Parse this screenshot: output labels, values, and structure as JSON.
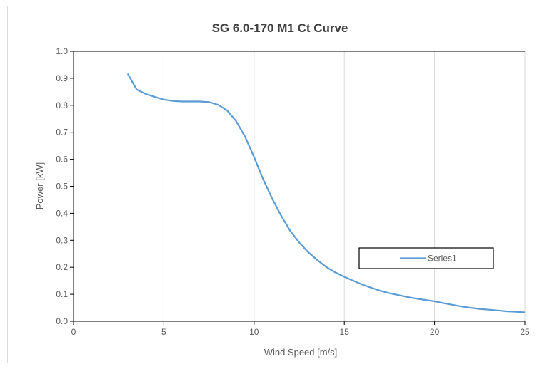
{
  "chart_data": {
    "type": "line",
    "title": "SG 6.0-170 M1 Ct Curve",
    "xlabel": "Wind Speed [m/s]",
    "ylabel": "Power [kW]",
    "xlim": [
      0,
      25
    ],
    "ylim": [
      0,
      1.0
    ],
    "xticks": [
      0,
      5,
      10,
      15,
      20,
      25
    ],
    "yticks": [
      "0.0",
      "0.1",
      "0.2",
      "0.3",
      "0.4",
      "0.5",
      "0.6",
      "0.7",
      "0.8",
      "0.9",
      "1.0"
    ],
    "grid": "vertical",
    "legend": {
      "placement": "lower-right",
      "entries": [
        "Series1"
      ]
    },
    "colors": {
      "series": "#5b9bd5",
      "grid": "#d9d9d9",
      "axis": "#000000"
    },
    "series": [
      {
        "name": "Series1",
        "x": [
          3,
          3.5,
          4,
          4.5,
          5,
          5.5,
          6,
          6.5,
          7,
          7.5,
          8,
          8.5,
          9,
          9.5,
          10,
          10.5,
          11,
          11.5,
          12,
          12.5,
          13,
          13.5,
          14,
          14.5,
          15,
          15.5,
          16,
          16.5,
          17,
          17.5,
          18,
          18.5,
          19,
          19.5,
          20,
          20.5,
          21,
          21.5,
          22,
          22.5,
          23,
          23.5,
          24,
          24.5,
          25
        ],
        "y": [
          0.917,
          0.858,
          0.842,
          0.831,
          0.821,
          0.816,
          0.814,
          0.814,
          0.814,
          0.812,
          0.802,
          0.781,
          0.742,
          0.683,
          0.608,
          0.527,
          0.455,
          0.391,
          0.335,
          0.292,
          0.256,
          0.227,
          0.201,
          0.181,
          0.165,
          0.15,
          0.136,
          0.124,
          0.113,
          0.104,
          0.097,
          0.09,
          0.084,
          0.079,
          0.074,
          0.067,
          0.061,
          0.055,
          0.05,
          0.046,
          0.043,
          0.04,
          0.037,
          0.035,
          0.033
        ]
      }
    ]
  }
}
